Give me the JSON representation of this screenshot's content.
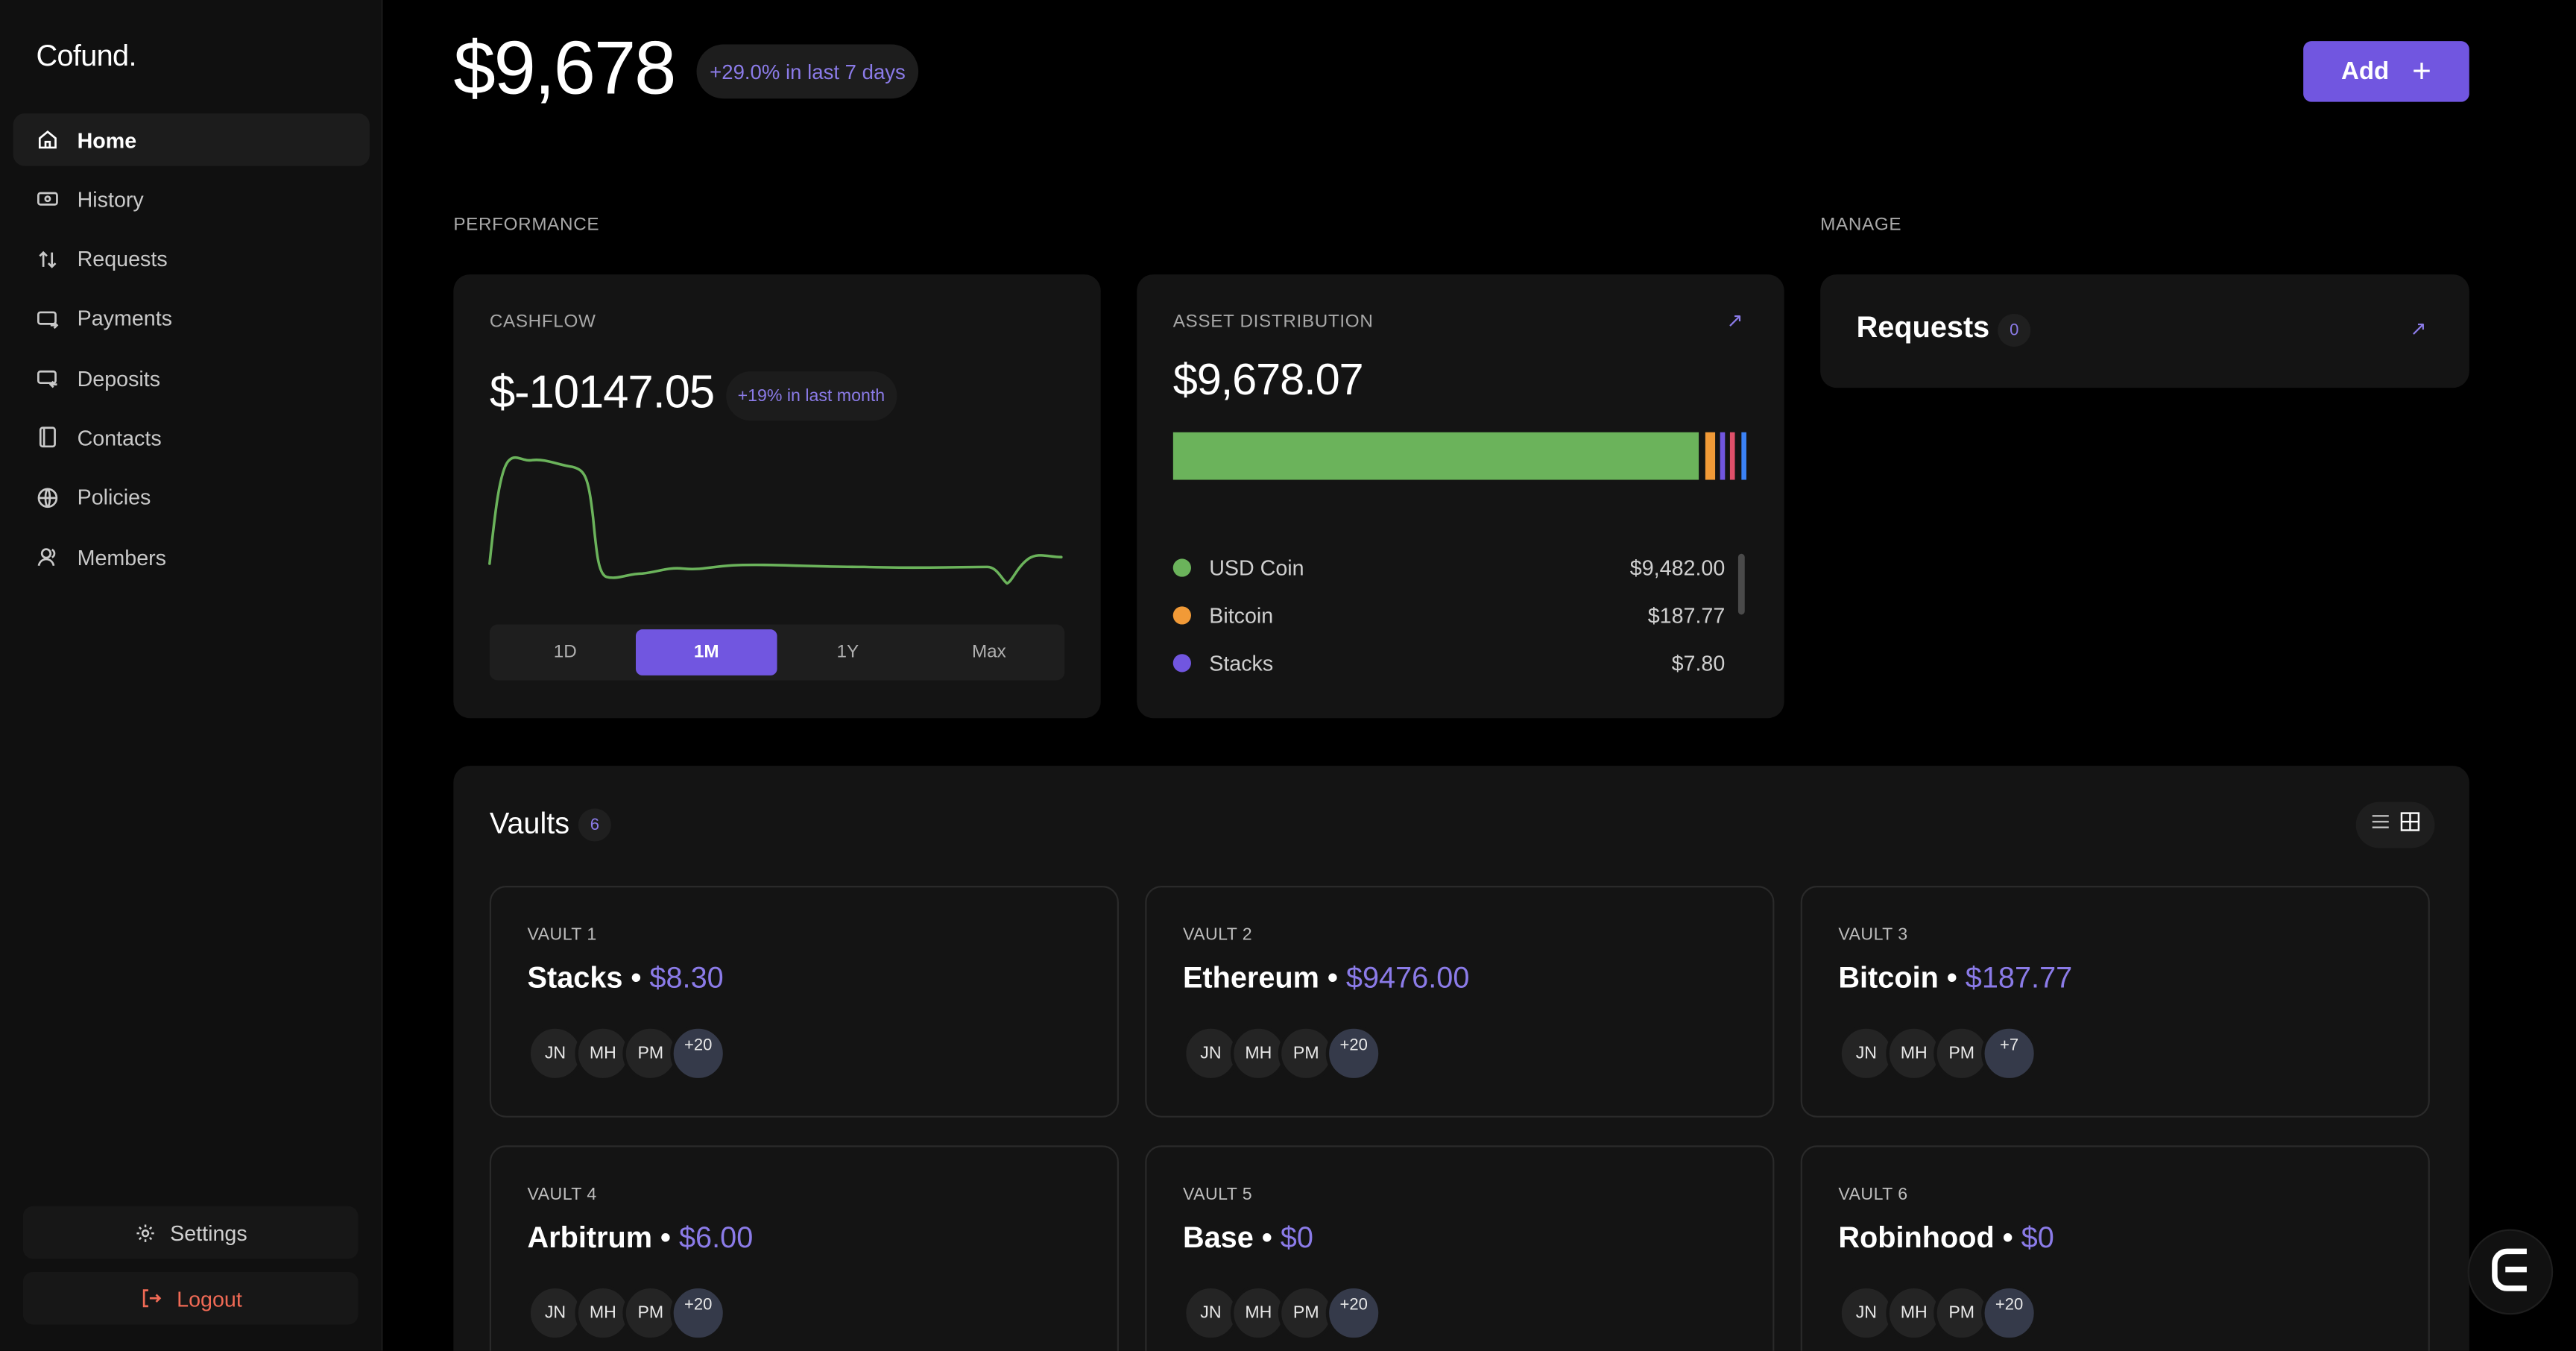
{
  "brand": {
    "name": "Cofund."
  },
  "sidebar": {
    "items": [
      {
        "label": "Home",
        "icon": "home-icon",
        "active": true
      },
      {
        "label": "History",
        "icon": "history-icon"
      },
      {
        "label": "Requests",
        "icon": "requests-icon"
      },
      {
        "label": "Payments",
        "icon": "payments-icon"
      },
      {
        "label": "Deposits",
        "icon": "deposits-icon"
      },
      {
        "label": "Contacts",
        "icon": "contacts-icon"
      },
      {
        "label": "Policies",
        "icon": "policies-icon"
      },
      {
        "label": "Members",
        "icon": "members-icon"
      }
    ],
    "settings_label": "Settings",
    "logout_label": "Logout"
  },
  "header": {
    "balance": "$9,678",
    "change": "+29.0% in last 7 days",
    "add_label": "Add"
  },
  "sections": {
    "performance": "PERFORMANCE",
    "manage": "MANAGE"
  },
  "cashflow": {
    "label": "CASHFLOW",
    "value": "$-10147.05",
    "change": "+19% in last month",
    "ranges": [
      "1D",
      "1M",
      "1Y",
      "Max"
    ],
    "active_range": "1M"
  },
  "asset_distribution": {
    "label": "ASSET DISTRIBUTION",
    "value": "$9,678.07",
    "assets": [
      {
        "name": "USD Coin",
        "amount": "$9,482.00",
        "color": "#6bb35b"
      },
      {
        "name": "Bitcoin",
        "amount": "$187.77",
        "color": "#f19a37"
      },
      {
        "name": "Stacks",
        "amount": "$7.80",
        "color": "#7156e0"
      }
    ]
  },
  "requests": {
    "title": "Requests",
    "count": "0"
  },
  "vaults": {
    "title": "Vaults",
    "count": "6",
    "items": [
      {
        "label": "VAULT 1",
        "name": "Stacks",
        "amount": "$8.30",
        "members": [
          "JN",
          "MH",
          "PM"
        ],
        "more": "+20"
      },
      {
        "label": "VAULT 2",
        "name": "Ethereum",
        "amount": "$9476.00",
        "members": [
          "JN",
          "MH",
          "PM"
        ],
        "more": "+20"
      },
      {
        "label": "VAULT 3",
        "name": "Bitcoin",
        "amount": "$187.77",
        "members": [
          "JN",
          "MH",
          "PM"
        ],
        "more": "+7"
      },
      {
        "label": "VAULT 4",
        "name": "Arbitrum",
        "amount": "$6.00",
        "members": [
          "JN",
          "MH",
          "PM"
        ],
        "more": "+20"
      },
      {
        "label": "VAULT 5",
        "name": "Base",
        "amount": "$0",
        "members": [
          "JN",
          "MH",
          "PM"
        ],
        "more": "+20"
      },
      {
        "label": "VAULT 6",
        "name": "Robinhood",
        "amount": "$0",
        "members": [
          "JN",
          "MH",
          "PM"
        ],
        "more": "+20"
      }
    ]
  },
  "colors": {
    "accent": "#7156e0",
    "accent_text": "#8b7be8",
    "logout": "#f06a55",
    "chart_line": "#6bb35b"
  }
}
